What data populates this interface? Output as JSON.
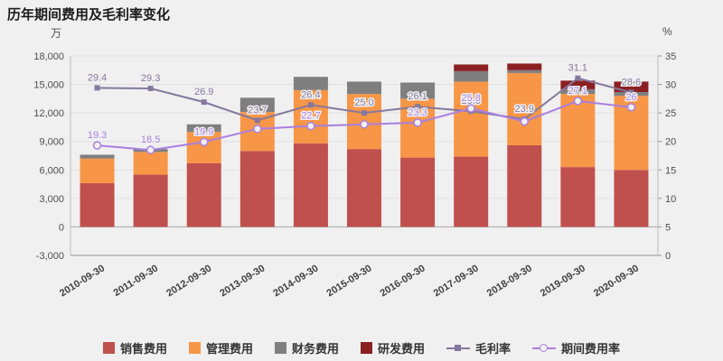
{
  "title": "历年期间费用及毛利率变化",
  "left_axis_unit": "万",
  "right_axis_unit": "%",
  "background_color": "#f0f0f0",
  "chart_data": {
    "type": "bar",
    "subtype": "stacked-bar-with-lines",
    "stacked": true,
    "grid": true,
    "legend_position": "bottom",
    "categories": [
      "2010-09-30",
      "2011-09-30",
      "2012-09-30",
      "2013-09-30",
      "2014-09-30",
      "2015-09-30",
      "2016-09-30",
      "2017-09-30",
      "2018-09-30",
      "2019-09-30",
      "2020-09-30"
    ],
    "left_axis": {
      "label": "万",
      "min": -3000,
      "max": 18000,
      "step": 3000,
      "tick_labels": [
        "-3,000",
        "0",
        "3,000",
        "6,000",
        "9,000",
        "12,000",
        "15,000",
        "18,000"
      ]
    },
    "right_axis": {
      "label": "%",
      "min": 0,
      "max": 35,
      "step": 5,
      "tick_labels": [
        "0",
        "5",
        "10",
        "15",
        "20",
        "25",
        "30",
        "35"
      ]
    },
    "bar_series": [
      {
        "name": "销售费用",
        "slug": "sales-expense",
        "axis": "left",
        "color": "#c0504d",
        "values": [
          4600,
          5500,
          6700,
          8000,
          8800,
          8200,
          7300,
          7400,
          8600,
          6300,
          6000
        ]
      },
      {
        "name": "管理费用",
        "slug": "admin-expense",
        "axis": "left",
        "color": "#f79646",
        "values": [
          2600,
          2400,
          3300,
          4100,
          5600,
          5800,
          6200,
          7900,
          7600,
          7700,
          7800
        ]
      },
      {
        "name": "财务费用",
        "slug": "finance-expense",
        "axis": "left",
        "color": "#7f7f7f",
        "values": [
          400,
          300,
          800,
          1500,
          1400,
          1300,
          1700,
          1100,
          300,
          500,
          400
        ]
      },
      {
        "name": "研发费用",
        "slug": "rd-expense",
        "axis": "left",
        "color": "#8b2022",
        "values": [
          0,
          0,
          0,
          0,
          0,
          0,
          0,
          700,
          700,
          900,
          1100
        ]
      }
    ],
    "line_series": [
      {
        "name": "毛利率",
        "slug": "gross-margin",
        "axis": "right",
        "color": "#85789d",
        "marker": "square",
        "values": [
          29.4,
          29.3,
          26.9,
          23.7,
          26.4,
          25.0,
          26.1,
          25.3,
          23.9,
          31.1,
          28.6
        ],
        "labels": [
          "29.4",
          "29.3",
          "26.9",
          "23.7",
          "26.4",
          "25.0",
          "26.1",
          "25.3",
          "23.9",
          "31.1",
          "28.6"
        ]
      },
      {
        "name": "期间费用率",
        "slug": "expense-ratio",
        "axis": "right",
        "color": "#a97fe0",
        "marker": "circle-open",
        "values": [
          19.3,
          18.5,
          19.9,
          22.2,
          22.7,
          23.0,
          23.3,
          25.8,
          23.5,
          27.1,
          26.0
        ],
        "labels": [
          "19.3",
          "18.5",
          "19.9",
          "",
          "22.7",
          "",
          "23.3",
          "25.8",
          "",
          "27.1",
          "26"
        ]
      }
    ]
  }
}
